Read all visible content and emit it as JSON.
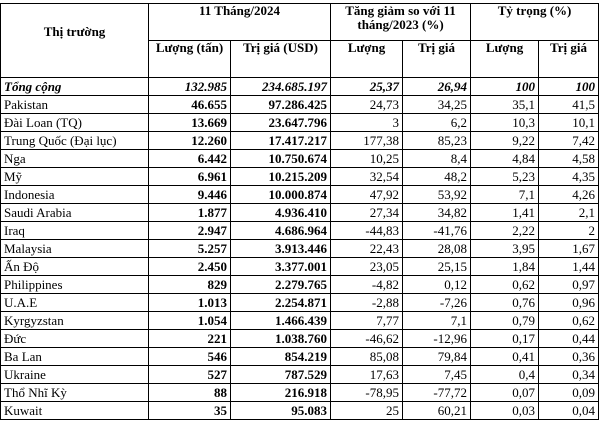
{
  "header": {
    "market": "Thị trường",
    "period": "11 Tháng/2024",
    "change": "Tăng giảm so với 11 tháng/2023 (%)",
    "share": "Tỷ trọng (%)",
    "sub": [
      "Lượng (tấn)",
      "Trị giá (USD)",
      "Lượng",
      "Trị giá",
      "Lượng",
      "Trị giá"
    ]
  },
  "table": {
    "rows": [
      [
        "Tổng cộng",
        "132.985",
        "234.685.197",
        "25,37",
        "26,94",
        "100",
        "100"
      ],
      [
        "Pakistan",
        "46.655",
        "97.286.425",
        "24,73",
        "34,25",
        "35,1",
        "41,5"
      ],
      [
        "Đài Loan (TQ)",
        "13.669",
        "23.647.796",
        "3",
        "6,2",
        "10,3",
        "10,1"
      ],
      [
        "Trung Quốc (Đại lục)",
        "12.260",
        "17.417.217",
        "177,38",
        "85,23",
        "9,22",
        "7,42"
      ],
      [
        "Nga",
        "6.442",
        "10.750.674",
        "10,25",
        "8,4",
        "4,84",
        "4,58"
      ],
      [
        "Mỹ",
        "6.961",
        "10.215.209",
        "32,54",
        "48,2",
        "5,23",
        "4,35"
      ],
      [
        "Indonesia",
        "9.446",
        "10.000.874",
        "47,92",
        "53,92",
        "7,1",
        "4,26"
      ],
      [
        "Saudi Arabia",
        "1.877",
        "4.936.410",
        "27,34",
        "34,82",
        "1,41",
        "2,1"
      ],
      [
        "Iraq",
        "2.947",
        "4.686.964",
        "-44,83",
        "-41,76",
        "2,22",
        "2"
      ],
      [
        "Malaysia",
        "5.257",
        "3.913.446",
        "22,43",
        "28,08",
        "3,95",
        "1,67"
      ],
      [
        "Ấn Độ",
        "2.450",
        "3.377.001",
        "23,05",
        "25,15",
        "1,84",
        "1,44"
      ],
      [
        "Philippines",
        "829",
        "2.279.765",
        "-4,82",
        "0,12",
        "0,62",
        "0,97"
      ],
      [
        "U.A.E",
        "1.013",
        "2.254.871",
        "-2,88",
        "-7,26",
        "0,76",
        "0,96"
      ],
      [
        "Kyrgyzstan",
        "1.054",
        "1.466.439",
        "7,77",
        "7,1",
        "0,79",
        "0,62"
      ],
      [
        "Đức",
        "221",
        "1.038.760",
        "-46,62",
        "-12,96",
        "0,17",
        "0,44"
      ],
      [
        "Ba Lan",
        "546",
        "854.219",
        "85,08",
        "79,84",
        "0,41",
        "0,36"
      ],
      [
        "Ukraine",
        "527",
        "787.529",
        "17,63",
        "7,45",
        "0,4",
        "0,34"
      ],
      [
        "Thổ Nhĩ Kỳ",
        "88",
        "216.918",
        "-78,95",
        "-77,72",
        "0,07",
        "0,09"
      ],
      [
        "Kuwait",
        "35",
        "95.083",
        "25",
        "60,21",
        "0,03",
        "0,04"
      ]
    ]
  }
}
